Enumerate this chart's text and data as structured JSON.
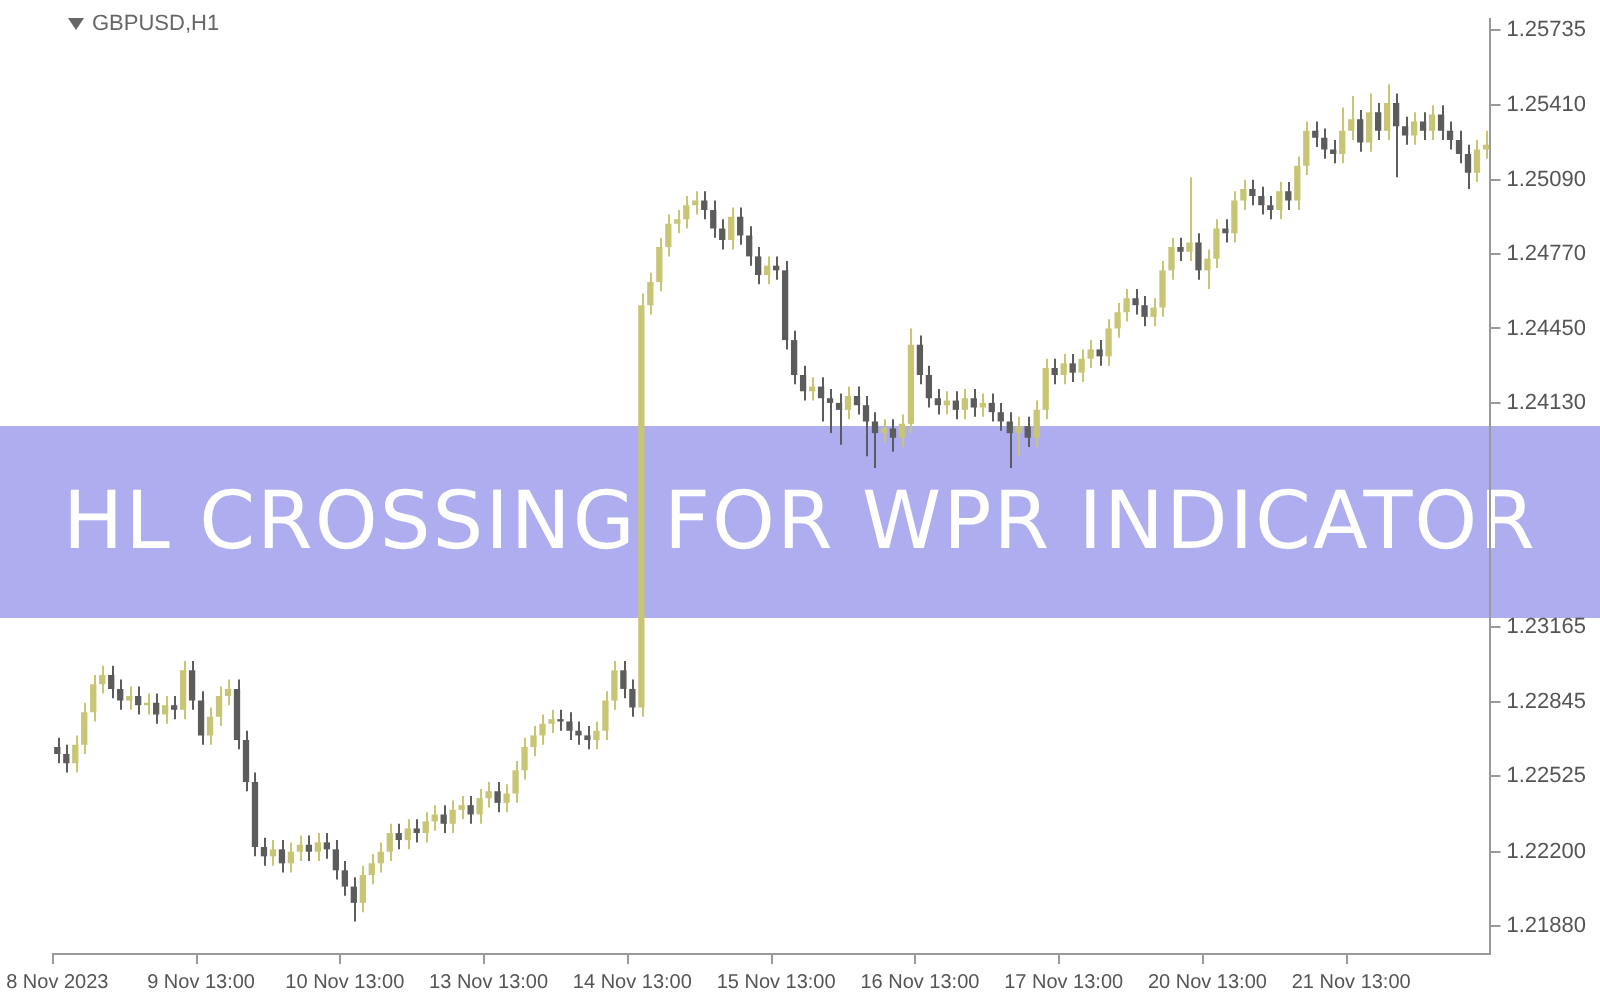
{
  "chart_data": {
    "type": "candlestick",
    "title": "HL CROSSING FOR WPR INDICATOR",
    "subtitle": "GBPUSD,H1",
    "colors": [
      "#5c5c5c",
      "#5c5c5c",
      "#c8c574",
      "#c8c574",
      "#c8c574",
      "#c8c574",
      "#5c5c5c",
      "#5c5c5c",
      "#c8c574",
      "#5c5c5c",
      "#c8c574",
      "#5c5c5c",
      "#c8c574",
      "#5c5c5c",
      "#c8c574",
      "#5c5c5c",
      "#5c5c5c",
      "#c8c574",
      "#c8c574",
      "#c8c574",
      "#5c5c5c",
      "#5c5c5c",
      "#5c5c5c",
      "#5c5c5c",
      "#c8c574",
      "#5c5c5c",
      "#c8c574",
      "#c8c574",
      "#5c5c5c",
      "#c8c574",
      "#5c5c5c",
      "#5c5c5c",
      "#5c5c5c",
      "#5c5c5c",
      "#c8c574",
      "#c8c574",
      "#c8c574",
      "#c8c574",
      "#5c5c5c",
      "#c8c574",
      "#5c5c5c",
      "#c8c574",
      "#c8c574",
      "#5c5c5c",
      "#c8c574",
      "#c8c574",
      "#5c5c5c",
      "#c8c574",
      "#c8c574",
      "#5c5c5c",
      "#c8c574",
      "#c8c574",
      "#c8c574",
      "#c8c574",
      "#c8c574",
      "#c8c574",
      "#5c5c5c",
      "#5c5c5c",
      "#5c5c5c",
      "#5c5c5c",
      "#c8c574",
      "#c8c574",
      "#c8c574",
      "#5c5c5c",
      "#5c5c5c",
      "#c8c574",
      "#c8c574",
      "#c8c574",
      "#c8c574",
      "#c8c574",
      "#c8c574",
      "#c8c574",
      "#5c5c5c",
      "#5c5c5c",
      "#5c5c5c",
      "#c8c574",
      "#5c5c5c",
      "#5c5c5c",
      "#5c5c5c",
      "#c8c574",
      "#5c5c5c",
      "#5c5c5c",
      "#5c5c5c",
      "#5c5c5c",
      "#c8c574",
      "#5c5c5c",
      "#5c5c5c",
      "#5c5c5c",
      "#c8c574",
      "#5c5c5c",
      "#5c5c5c",
      "#5c5c5c",
      "#c8c574",
      "#5c5c5c",
      "#c8c574",
      "#c8c574",
      "#5c5c5c",
      "#5c5c5c",
      "#5c5c5c",
      "#c8c574",
      "#5c5c5c",
      "#c8c574",
      "#5c5c5c",
      "#c8c574",
      "#5c5c5c",
      "#5c5c5c",
      "#5c5c5c",
      "#c8c574",
      "#5c5c5c",
      "#c8c574",
      "#c8c574",
      "#5c5c5c",
      "#c8c574",
      "#5c5c5c",
      "#c8c574",
      "#c8c574",
      "#5c5c5c",
      "#c8c574",
      "#c8c574",
      "#c8c574",
      "#5c5c5c",
      "#5c5c5c",
      "#c8c574",
      "#c8c574",
      "#c8c574",
      "#5c5c5c",
      "#c8c574",
      "#5c5c5c",
      "#c8c574",
      "#c8c574",
      "#5c5c5c",
      "#c8c574",
      "#c8c574",
      "#5c5c5c",
      "#5c5c5c",
      "#5c5c5c",
      "#c8c574",
      "#5c5c5c",
      "#c8c574",
      "#c8c574",
      "#5c5c5c",
      "#5c5c5c",
      "#5c5c5c",
      "#c8c574",
      "#c8c574",
      "#5c5c5c",
      "#c8c574",
      "#5c5c5c",
      "#c8c574",
      "#5c5c5c",
      "#5c5c5c",
      "#c8c574",
      "#5c5c5c",
      "#c8c574",
      "#5c5c5c",
      "#5c5c5c",
      "#5c5c5c",
      "#5c5c5c",
      "#c8c574",
      "#c8c574"
    ],
    "ylim": [
      1.2176,
      1.2578
    ],
    "yticks": [
      {
        "value": 1.2188,
        "label": "1.21880"
      },
      {
        "value": 1.222,
        "label": "1.22200"
      },
      1.22525,
      1.22845,
      1.23165,
      {
        "value": 1.2413,
        "label": "1.24130"
      },
      {
        "value": 1.2445,
        "label": "1.24450"
      },
      {
        "value": 1.2477,
        "label": "1.24770"
      },
      {
        "value": 1.2509,
        "label": "1.25090"
      },
      {
        "value": 1.2541,
        "label": "1.25410"
      },
      1.25735
    ],
    "categories": [
      "8 Nov 2023",
      null,
      null,
      null,
      null,
      null,
      null,
      null,
      null,
      null,
      null,
      null,
      null,
      null,
      null,
      null,
      "9 Nov 13:00",
      null,
      null,
      null,
      null,
      null,
      null,
      null,
      null,
      null,
      null,
      null,
      null,
      null,
      null,
      null,
      "10 Nov 13:00",
      null,
      null,
      null,
      null,
      null,
      null,
      null,
      null,
      null,
      null,
      null,
      null,
      null,
      null,
      null,
      "13 Nov 13:00",
      null,
      null,
      null,
      null,
      null,
      null,
      null,
      null,
      null,
      null,
      null,
      null,
      null,
      null,
      null,
      "14 Nov 13:00",
      null,
      null,
      null,
      null,
      null,
      null,
      null,
      null,
      null,
      null,
      null,
      null,
      null,
      null,
      null,
      "15 Nov 13:00",
      null,
      null,
      null,
      null,
      null,
      null,
      null,
      null,
      null,
      null,
      null,
      null,
      null,
      null,
      null,
      "16 Nov 13:00",
      null,
      null,
      null,
      null,
      null,
      null,
      null,
      null,
      null,
      null,
      null,
      null,
      null,
      null,
      null,
      "17 Nov 13:00",
      null,
      null,
      null,
      null,
      null,
      null,
      null,
      null,
      null,
      null,
      null,
      null,
      null,
      null,
      null,
      "20 Nov 13:00",
      null,
      null,
      null,
      null,
      null,
      null,
      null,
      null,
      null,
      null,
      null,
      null,
      null,
      null,
      null,
      "21 Nov 13:00",
      null,
      null,
      null,
      null,
      null,
      null,
      null,
      null,
      null,
      null,
      null,
      null,
      null,
      null,
      null
    ],
    "ohlc": [
      [
        1.2265,
        1.2269,
        1.2258,
        1.2262
      ],
      [
        1.2262,
        1.2266,
        1.2254,
        1.2258
      ],
      [
        1.2258,
        1.227,
        1.2254,
        1.2266
      ],
      [
        1.2266,
        1.2284,
        1.2262,
        1.228
      ],
      [
        1.228,
        1.2296,
        1.2276,
        1.2292
      ],
      [
        1.2292,
        1.23,
        1.2288,
        1.2296
      ],
      [
        1.2296,
        1.23,
        1.2286,
        1.229
      ],
      [
        1.229,
        1.2294,
        1.2281,
        1.2285
      ],
      [
        1.2285,
        1.2291,
        1.2281,
        1.2287
      ],
      [
        1.2287,
        1.2291,
        1.2279,
        1.2283
      ],
      [
        1.2283,
        1.2288,
        1.2279,
        1.2284
      ],
      [
        1.2284,
        1.2288,
        1.2275,
        1.2279
      ],
      [
        1.2279,
        1.2287,
        1.2275,
        1.2283
      ],
      [
        1.2283,
        1.2287,
        1.2277,
        1.2281
      ],
      [
        1.2281,
        1.2302,
        1.2277,
        1.2298
      ],
      [
        1.2298,
        1.2302,
        1.2281,
        1.2285
      ],
      [
        1.2285,
        1.2289,
        1.2266,
        1.227
      ],
      [
        1.227,
        1.2282,
        1.2266,
        1.2278
      ],
      [
        1.2278,
        1.2291,
        1.2274,
        1.2287
      ],
      [
        1.2287,
        1.2294,
        1.2283,
        1.229
      ],
      [
        1.229,
        1.2294,
        1.2264,
        1.2268
      ],
      [
        1.2268,
        1.2272,
        1.2246,
        1.225
      ],
      [
        1.225,
        1.2254,
        1.2218,
        1.2222
      ],
      [
        1.2222,
        1.2226,
        1.2214,
        1.2218
      ],
      [
        1.2218,
        1.2225,
        1.2214,
        1.2221
      ],
      [
        1.2221,
        1.2225,
        1.2211,
        1.2215
      ],
      [
        1.2215,
        1.2224,
        1.2211,
        1.222
      ],
      [
        1.222,
        1.2227,
        1.2216,
        1.2223
      ],
      [
        1.2223,
        1.2227,
        1.2216,
        1.222
      ],
      [
        1.222,
        1.2228,
        1.2216,
        1.2224
      ],
      [
        1.2224,
        1.2228,
        1.2217,
        1.2221
      ],
      [
        1.2221,
        1.2225,
        1.2208,
        1.2212
      ],
      [
        1.2212,
        1.2216,
        1.2201,
        1.2205
      ],
      [
        1.2205,
        1.2209,
        1.219,
        1.2198
      ],
      [
        1.2198,
        1.2214,
        1.2194,
        1.221
      ],
      [
        1.221,
        1.2219,
        1.2206,
        1.2215
      ],
      [
        1.2215,
        1.2224,
        1.2211,
        1.222
      ],
      [
        1.222,
        1.2232,
        1.2216,
        1.2228
      ],
      [
        1.2228,
        1.2232,
        1.2221,
        1.2225
      ],
      [
        1.2225,
        1.2234,
        1.2221,
        1.223
      ],
      [
        1.223,
        1.2234,
        1.2224,
        1.2228
      ],
      [
        1.2228,
        1.2237,
        1.2224,
        1.2233
      ],
      [
        1.2233,
        1.224,
        1.2229,
        1.2236
      ],
      [
        1.2236,
        1.224,
        1.2228,
        1.2232
      ],
      [
        1.2232,
        1.2242,
        1.2228,
        1.2238
      ],
      [
        1.2238,
        1.2244,
        1.2234,
        1.224
      ],
      [
        1.224,
        1.2244,
        1.2232,
        1.2236
      ],
      [
        1.2236,
        1.2247,
        1.2232,
        1.2243
      ],
      [
        1.2243,
        1.225,
        1.2239,
        1.2246
      ],
      [
        1.2246,
        1.225,
        1.2237,
        1.2241
      ],
      [
        1.2241,
        1.2249,
        1.2237,
        1.2245
      ],
      [
        1.2245,
        1.2259,
        1.2241,
        1.2255
      ],
      [
        1.2255,
        1.2269,
        1.2251,
        1.2265
      ],
      [
        1.2265,
        1.2274,
        1.2261,
        1.227
      ],
      [
        1.227,
        1.2279,
        1.2266,
        1.2275
      ],
      [
        1.2275,
        1.2281,
        1.2271,
        1.2277
      ],
      [
        1.2277,
        1.2281,
        1.2272,
        1.2276
      ],
      [
        1.2276,
        1.228,
        1.2268,
        1.2272
      ],
      [
        1.2272,
        1.2276,
        1.2266,
        1.227
      ],
      [
        1.227,
        1.2274,
        1.2264,
        1.2268
      ],
      [
        1.2268,
        1.2276,
        1.2264,
        1.2272
      ],
      [
        1.2272,
        1.2289,
        1.2268,
        1.2285
      ],
      [
        1.2285,
        1.2302,
        1.2281,
        1.2298
      ],
      [
        1.2298,
        1.2302,
        1.2286,
        1.229
      ],
      [
        1.229,
        1.2294,
        1.2278,
        1.2282
      ],
      [
        1.2282,
        1.246,
        1.2278,
        1.2455
      ],
      [
        1.2455,
        1.2469,
        1.2451,
        1.2465
      ],
      [
        1.2465,
        1.2484,
        1.2461,
        1.248
      ],
      [
        1.248,
        1.2494,
        1.2476,
        1.249
      ],
      [
        1.249,
        1.2496,
        1.2486,
        1.2492
      ],
      [
        1.2492,
        1.2502,
        1.2488,
        1.2498
      ],
      [
        1.2498,
        1.2504,
        1.2494,
        1.25
      ],
      [
        1.25,
        1.2504,
        1.2492,
        1.2496
      ],
      [
        1.2496,
        1.25,
        1.2484,
        1.2488
      ],
      [
        1.2488,
        1.2492,
        1.2479,
        1.2483
      ],
      [
        1.2483,
        1.2497,
        1.2479,
        1.2493
      ],
      [
        1.2493,
        1.2497,
        1.2481,
        1.2485
      ],
      [
        1.2485,
        1.2489,
        1.2472,
        1.2476
      ],
      [
        1.2476,
        1.248,
        1.2464,
        1.2468
      ],
      [
        1.2468,
        1.2476,
        1.2464,
        1.2472
      ],
      [
        1.2472,
        1.2476,
        1.2466,
        1.247
      ],
      [
        1.247,
        1.2474,
        1.2436,
        1.244
      ],
      [
        1.244,
        1.2444,
        1.2421,
        1.2425
      ],
      [
        1.2425,
        1.2429,
        1.2414,
        1.2418
      ],
      [
        1.2418,
        1.2424,
        1.2414,
        1.242
      ],
      [
        1.242,
        1.2424,
        1.2405,
        1.2415
      ],
      [
        1.2415,
        1.2419,
        1.24,
        1.2413
      ],
      [
        1.2413,
        1.2417,
        1.2395,
        1.241
      ],
      [
        1.241,
        1.242,
        1.2406,
        1.2416
      ],
      [
        1.2416,
        1.242,
        1.2408,
        1.2412
      ],
      [
        1.2412,
        1.2416,
        1.239,
        1.2405
      ],
      [
        1.2405,
        1.2409,
        1.2385,
        1.24
      ],
      [
        1.24,
        1.2406,
        1.2396,
        1.2402
      ],
      [
        1.2402,
        1.2406,
        1.2392,
        1.2398
      ],
      [
        1.2398,
        1.2408,
        1.2394,
        1.2404
      ],
      [
        1.2404,
        1.2445,
        1.24,
        1.2438
      ],
      [
        1.2438,
        1.2442,
        1.2421,
        1.2425
      ],
      [
        1.2425,
        1.2429,
        1.2411,
        1.2415
      ],
      [
        1.2415,
        1.2419,
        1.2408,
        1.2412
      ],
      [
        1.2412,
        1.2418,
        1.2408,
        1.2414
      ],
      [
        1.2414,
        1.2418,
        1.2406,
        1.241
      ],
      [
        1.241,
        1.2419,
        1.2406,
        1.2415
      ],
      [
        1.2415,
        1.2419,
        1.2407,
        1.2411
      ],
      [
        1.2411,
        1.2417,
        1.2407,
        1.2413
      ],
      [
        1.2413,
        1.2417,
        1.2405,
        1.2409
      ],
      [
        1.2409,
        1.2413,
        1.2401,
        1.2405
      ],
      [
        1.2405,
        1.2409,
        1.2385,
        1.24
      ],
      [
        1.24,
        1.2407,
        1.239,
        1.2403
      ],
      [
        1.2403,
        1.2407,
        1.2394,
        1.2398
      ],
      [
        1.2398,
        1.2414,
        1.2394,
        1.241
      ],
      [
        1.241,
        1.2432,
        1.2406,
        1.2428
      ],
      [
        1.2428,
        1.2432,
        1.2421,
        1.2425
      ],
      [
        1.2425,
        1.2434,
        1.2421,
        1.243
      ],
      [
        1.243,
        1.2434,
        1.2422,
        1.2426
      ],
      [
        1.2426,
        1.2436,
        1.2422,
        1.2432
      ],
      [
        1.2432,
        1.244,
        1.2428,
        1.2436
      ],
      [
        1.2436,
        1.244,
        1.2429,
        1.2433
      ],
      [
        1.2433,
        1.2449,
        1.2429,
        1.2445
      ],
      [
        1.2445,
        1.2456,
        1.2441,
        1.2452
      ],
      [
        1.2452,
        1.2462,
        1.2448,
        1.2458
      ],
      [
        1.2458,
        1.2462,
        1.2451,
        1.2455
      ],
      [
        1.2455,
        1.2459,
        1.2446,
        1.245
      ],
      [
        1.245,
        1.2458,
        1.2446,
        1.2454
      ],
      [
        1.2454,
        1.2474,
        1.245,
        1.247
      ],
      [
        1.247,
        1.2484,
        1.2466,
        1.248
      ],
      [
        1.248,
        1.2484,
        1.2474,
        1.2478
      ],
      [
        1.2478,
        1.251,
        1.2474,
        1.2482
      ],
      [
        1.2482,
        1.2486,
        1.2466,
        1.247
      ],
      [
        1.247,
        1.2479,
        1.2462,
        1.2475
      ],
      [
        1.2475,
        1.2492,
        1.2471,
        1.2488
      ],
      [
        1.2488,
        1.2492,
        1.2482,
        1.2486
      ],
      [
        1.2486,
        1.2504,
        1.2482,
        1.25
      ],
      [
        1.25,
        1.2509,
        1.2496,
        1.2505
      ],
      [
        1.2505,
        1.2509,
        1.2498,
        1.2502
      ],
      [
        1.2502,
        1.2506,
        1.2494,
        1.2498
      ],
      [
        1.2498,
        1.2502,
        1.2492,
        1.2496
      ],
      [
        1.2496,
        1.2508,
        1.2492,
        1.2504
      ],
      [
        1.2504,
        1.2508,
        1.2496,
        1.25
      ],
      [
        1.25,
        1.2519,
        1.2496,
        1.2515
      ],
      [
        1.2515,
        1.2534,
        1.2511,
        1.253
      ],
      [
        1.253,
        1.2534,
        1.2523,
        1.2527
      ],
      [
        1.2527,
        1.2531,
        1.2518,
        1.2522
      ],
      [
        1.2522,
        1.2526,
        1.2516,
        1.252
      ],
      [
        1.252,
        1.254,
        1.2516,
        1.253
      ],
      [
        1.253,
        1.2545,
        1.2526,
        1.2535
      ],
      [
        1.2535,
        1.2539,
        1.2521,
        1.2525
      ],
      [
        1.2525,
        1.2546,
        1.2521,
        1.2538
      ],
      [
        1.2538,
        1.2542,
        1.2526,
        1.253
      ],
      [
        1.253,
        1.255,
        1.2526,
        1.2542
      ],
      [
        1.2542,
        1.2546,
        1.251,
        1.2532
      ],
      [
        1.2532,
        1.2536,
        1.2524,
        1.2528
      ],
      [
        1.2528,
        1.2538,
        1.2524,
        1.2534
      ],
      [
        1.2534,
        1.2538,
        1.2526,
        1.253
      ],
      [
        1.253,
        1.2541,
        1.2526,
        1.2537
      ],
      [
        1.2537,
        1.2541,
        1.2526,
        1.253
      ],
      [
        1.253,
        1.2534,
        1.2522,
        1.2526
      ],
      [
        1.2526,
        1.253,
        1.2516,
        1.252
      ],
      [
        1.252,
        1.2524,
        1.2505,
        1.2512
      ],
      [
        1.2512,
        1.2526,
        1.2508,
        1.2522
      ],
      [
        1.2522,
        1.253,
        1.2518,
        1.2524
      ]
    ]
  }
}
